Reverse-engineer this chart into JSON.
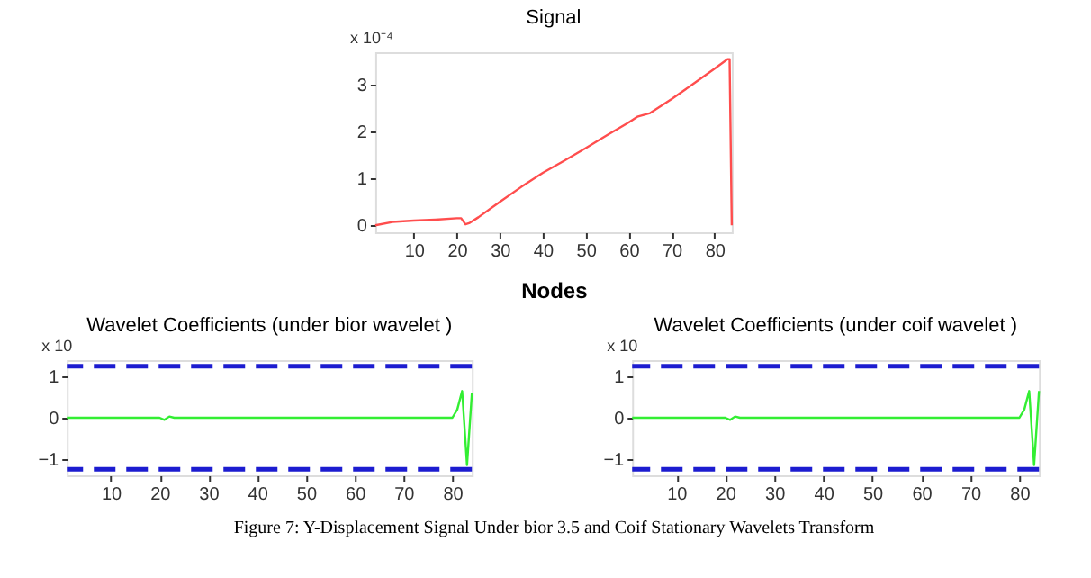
{
  "chart_data": [
    {
      "type": "line",
      "title": "Signal",
      "xlabel": "Nodes",
      "annotations": [
        "x 10⁻⁴"
      ],
      "x": [
        1,
        5,
        10,
        15,
        20,
        21,
        22,
        23,
        25,
        30,
        35,
        40,
        45,
        50,
        55,
        60,
        62,
        65,
        70,
        75,
        80,
        83,
        83.5,
        84
      ],
      "series": [
        {
          "color": "#ff4d4d",
          "values": [
            0.0,
            0.07,
            0.1,
            0.12,
            0.15,
            0.15,
            0.02,
            0.05,
            0.17,
            0.5,
            0.82,
            1.12,
            1.38,
            1.65,
            1.93,
            2.2,
            2.32,
            2.4,
            2.7,
            3.02,
            3.35,
            3.55,
            3.55,
            0.0
          ]
        }
      ],
      "xlim": [
        1,
        84
      ],
      "ylim": [
        -0.15,
        3.7
      ],
      "xticks": [
        10,
        20,
        30,
        40,
        50,
        60,
        70,
        80
      ],
      "yticks": [
        0,
        1,
        2,
        3
      ],
      "grid": false
    },
    {
      "type": "line",
      "title": "Wavelet Coefficients (under bior wavelet )",
      "annotations": [
        "x 10"
      ],
      "x": [
        1,
        10,
        20,
        21,
        22,
        23,
        30,
        40,
        50,
        60,
        70,
        80,
        81,
        82,
        83,
        84
      ],
      "series": [
        {
          "color": "#33ee33",
          "values": [
            0,
            0,
            0,
            -0.05,
            0.03,
            0,
            0,
            0,
            0,
            0,
            0,
            0,
            0.2,
            0.65,
            -1.15,
            0.6
          ]
        }
      ],
      "ref_lines": [
        {
          "axis": "y",
          "value": 1.25,
          "color": "#1c1cd0",
          "line_style": "dashed"
        },
        {
          "axis": "y",
          "value": -1.25,
          "color": "#1c1cd0",
          "line_style": "dashed"
        }
      ],
      "xlim": [
        1,
        84
      ],
      "ylim": [
        -1.4,
        1.4
      ],
      "xticks": [
        10,
        20,
        30,
        40,
        50,
        60,
        70,
        80
      ],
      "yticks": [
        -1,
        0,
        1
      ],
      "grid": false
    },
    {
      "type": "line",
      "title": "Wavelet Coefficients (under coif wavelet )",
      "annotations": [
        "x 10",
        "Figure 7: Y-Displacement Signal Under bior 3.5 and Coif Stationary Wavelets Transform"
      ],
      "x": [
        1,
        10,
        20,
        21,
        22,
        23,
        30,
        40,
        50,
        60,
        70,
        80,
        81,
        82,
        83,
        84
      ],
      "series": [
        {
          "color": "#33ee33",
          "values": [
            0,
            0,
            0,
            -0.05,
            0.03,
            0,
            0,
            0,
            0,
            0,
            0,
            0,
            0.2,
            0.65,
            -1.15,
            0.65
          ]
        }
      ],
      "ref_lines": [
        {
          "axis": "y",
          "value": 1.25,
          "color": "#1c1cd0",
          "line_style": "dashed"
        },
        {
          "axis": "y",
          "value": -1.25,
          "color": "#1c1cd0",
          "line_style": "dashed"
        }
      ],
      "xlim": [
        1,
        84
      ],
      "ylim": [
        -1.4,
        1.4
      ],
      "xticks": [
        10,
        20,
        30,
        40,
        50,
        60,
        70,
        80
      ],
      "yticks": [
        -1,
        0,
        1
      ],
      "grid": false
    }
  ]
}
